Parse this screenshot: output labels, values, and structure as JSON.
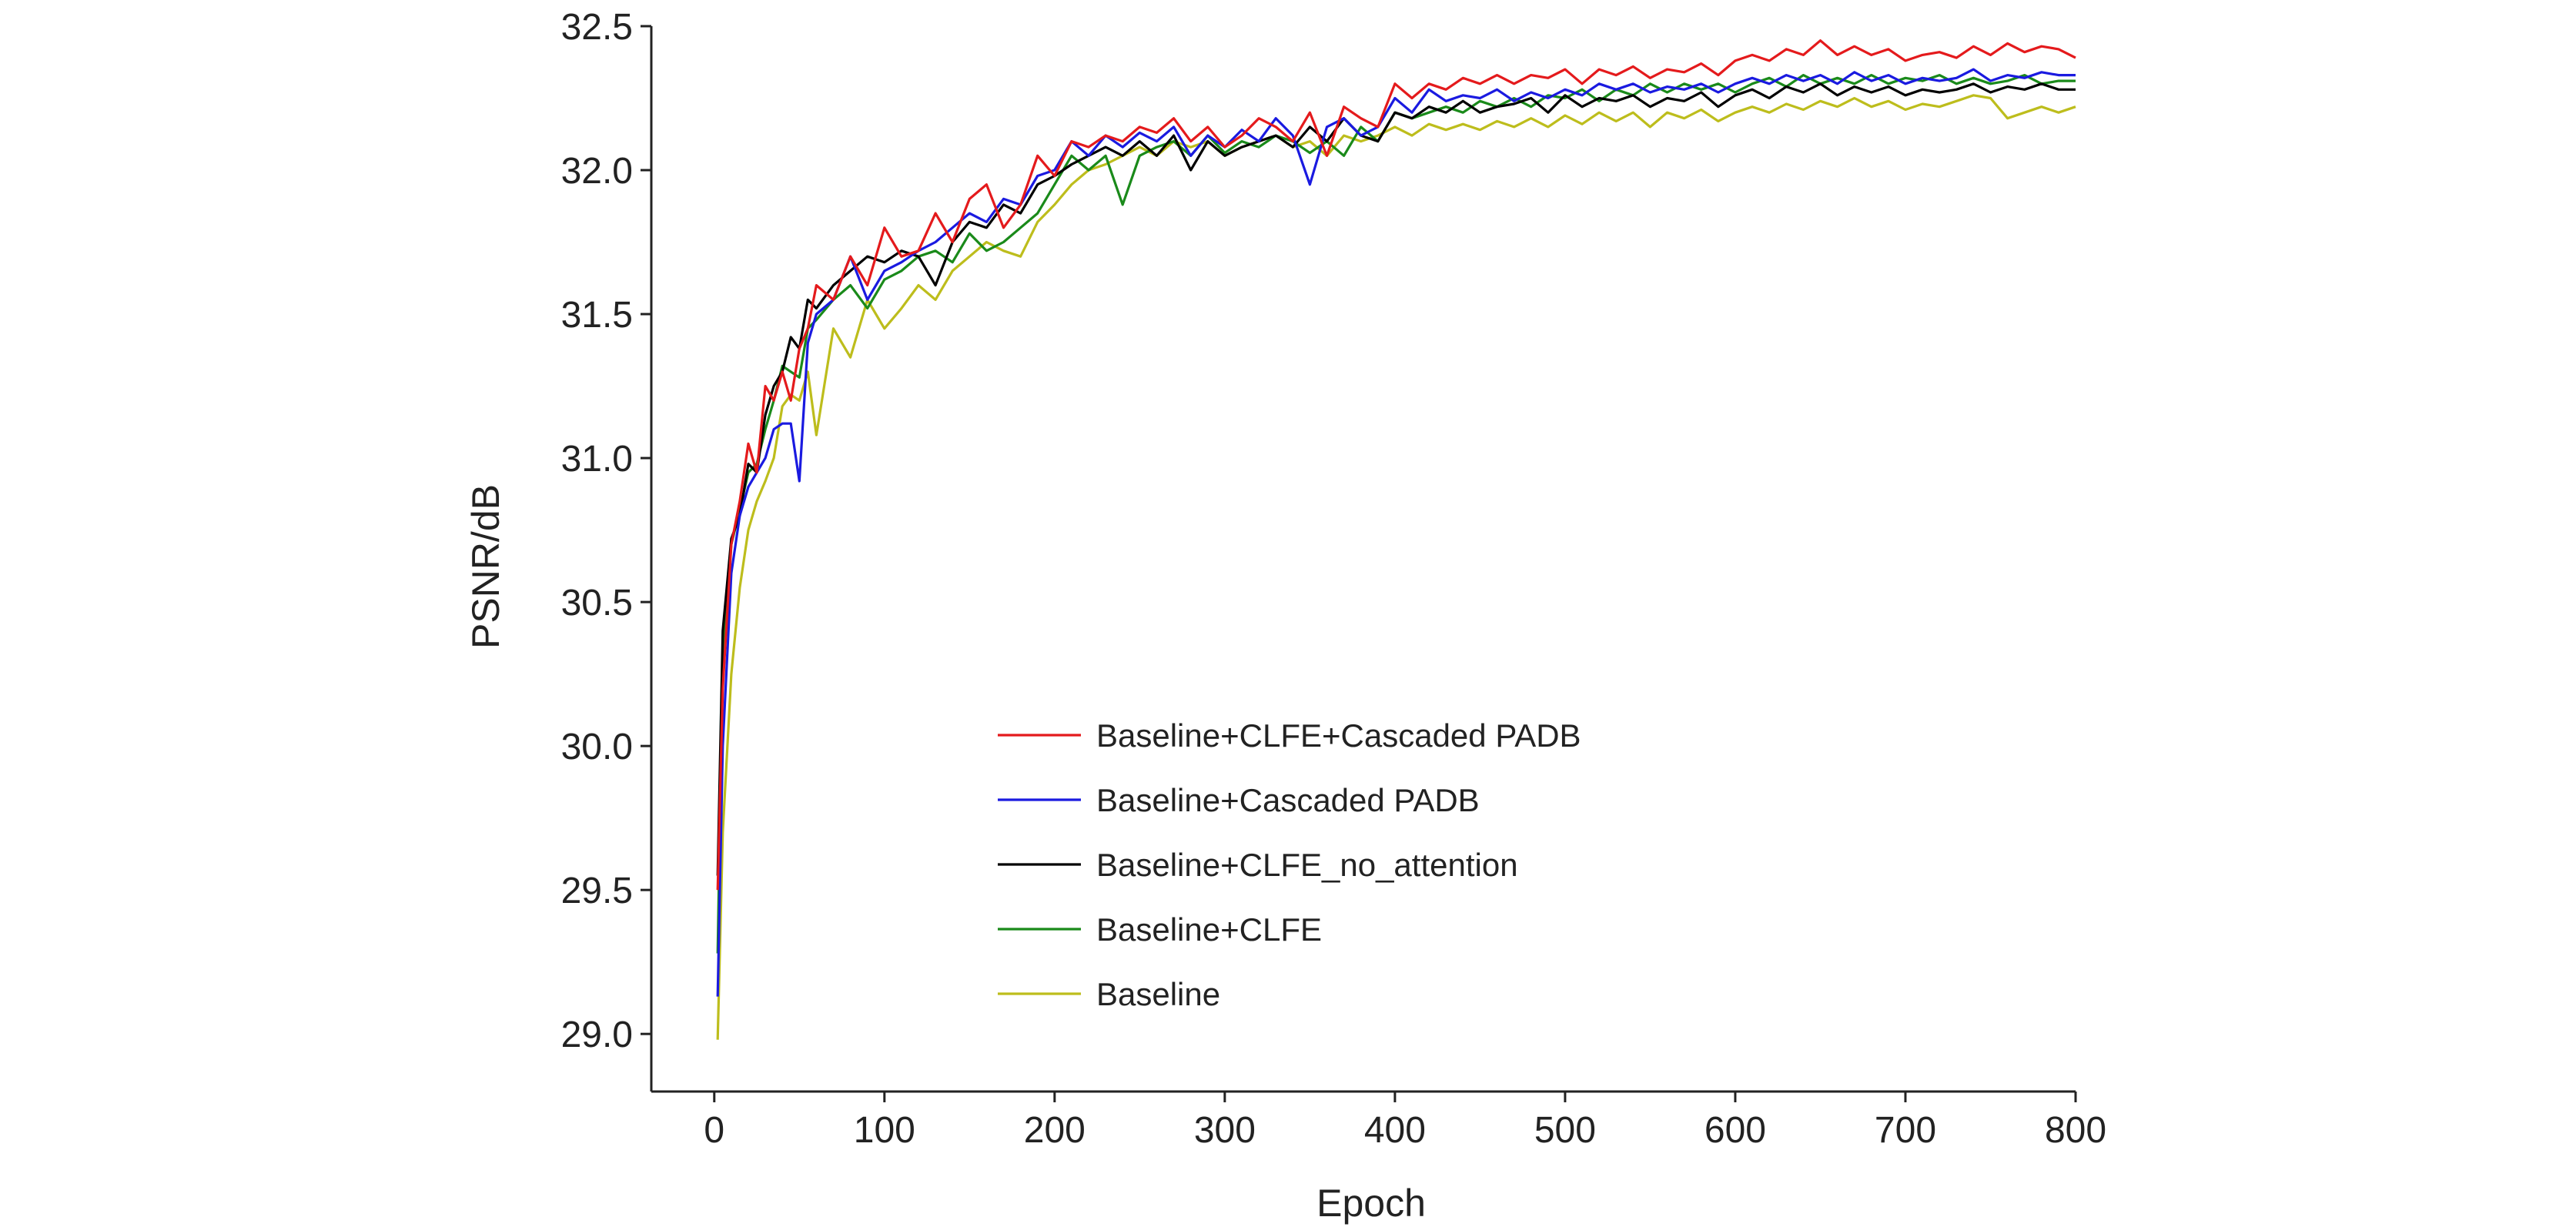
{
  "chart_data": {
    "type": "line",
    "title": "",
    "xlabel": "Epoch",
    "ylabel": "PSNR/dB",
    "xlim": [
      -37,
      800
    ],
    "ylim": [
      28.8,
      32.5
    ],
    "x_ticks": [
      0,
      100,
      200,
      300,
      400,
      500,
      600,
      700,
      800
    ],
    "x_tick_labels": [
      "0",
      "100",
      "200",
      "300",
      "400",
      "500",
      "600",
      "700",
      "800"
    ],
    "y_ticks": [
      29.0,
      29.5,
      30.0,
      30.5,
      31.0,
      31.5,
      32.0,
      32.5
    ],
    "y_tick_labels": [
      "29.0",
      "29.5",
      "30.0",
      "30.5",
      "31.0",
      "31.5",
      "32.0",
      "32.5"
    ],
    "grid": false,
    "legend_position": "center",
    "series": [
      {
        "name": "Baseline+CLFE+Cascaded PADB",
        "color": "#e41a1c",
        "x": [
          2,
          5,
          10,
          15,
          20,
          25,
          30,
          35,
          40,
          45,
          50,
          55,
          60,
          70,
          80,
          90,
          100,
          110,
          120,
          130,
          140,
          150,
          160,
          170,
          180,
          190,
          200,
          210,
          220,
          230,
          240,
          250,
          260,
          270,
          280,
          290,
          300,
          310,
          320,
          330,
          340,
          350,
          360,
          370,
          380,
          390,
          400,
          410,
          420,
          430,
          440,
          450,
          460,
          470,
          480,
          490,
          500,
          510,
          520,
          530,
          540,
          550,
          560,
          570,
          580,
          590,
          600,
          610,
          620,
          630,
          640,
          650,
          660,
          670,
          680,
          690,
          700,
          710,
          720,
          730,
          740,
          750,
          760,
          770,
          780,
          790,
          800
        ],
        "y": [
          29.5,
          30.2,
          30.7,
          30.85,
          31.05,
          30.95,
          31.25,
          31.2,
          31.3,
          31.2,
          31.38,
          31.45,
          31.6,
          31.55,
          31.7,
          31.6,
          31.8,
          31.7,
          31.72,
          31.85,
          31.75,
          31.9,
          31.95,
          31.8,
          31.88,
          32.05,
          31.98,
          32.1,
          32.08,
          32.12,
          32.1,
          32.15,
          32.13,
          32.18,
          32.1,
          32.15,
          32.08,
          32.12,
          32.18,
          32.15,
          32.1,
          32.2,
          32.05,
          32.22,
          32.18,
          32.15,
          32.3,
          32.25,
          32.3,
          32.28,
          32.32,
          32.3,
          32.33,
          32.3,
          32.33,
          32.32,
          32.35,
          32.3,
          32.35,
          32.33,
          32.36,
          32.32,
          32.35,
          32.34,
          32.37,
          32.33,
          32.38,
          32.4,
          32.38,
          32.42,
          32.4,
          32.45,
          32.4,
          32.43,
          32.4,
          32.42,
          32.38,
          32.4,
          32.41,
          32.39,
          32.43,
          32.4,
          32.44,
          32.41,
          32.43,
          32.42,
          32.39
        ]
      },
      {
        "name": "Baseline+Cascaded PADB",
        "color": "#1a1ae0",
        "x": [
          2,
          5,
          10,
          15,
          20,
          25,
          30,
          35,
          40,
          45,
          50,
          55,
          60,
          70,
          80,
          90,
          100,
          110,
          120,
          130,
          140,
          150,
          160,
          170,
          180,
          190,
          200,
          210,
          220,
          230,
          240,
          250,
          260,
          270,
          280,
          290,
          300,
          310,
          320,
          330,
          340,
          350,
          360,
          370,
          380,
          390,
          400,
          410,
          420,
          430,
          440,
          450,
          460,
          470,
          480,
          490,
          500,
          510,
          520,
          530,
          540,
          550,
          560,
          570,
          580,
          590,
          600,
          610,
          620,
          630,
          640,
          650,
          660,
          670,
          680,
          690,
          700,
          710,
          720,
          730,
          740,
          750,
          760,
          770,
          780,
          790,
          800
        ],
        "y": [
          29.13,
          30.0,
          30.6,
          30.8,
          30.9,
          30.95,
          31.0,
          31.1,
          31.12,
          31.12,
          30.92,
          31.4,
          31.5,
          31.55,
          31.7,
          31.55,
          31.65,
          31.68,
          31.72,
          31.75,
          31.8,
          31.85,
          31.82,
          31.9,
          31.88,
          31.98,
          32.0,
          32.1,
          32.05,
          32.12,
          32.08,
          32.13,
          32.1,
          32.15,
          32.05,
          32.12,
          32.08,
          32.14,
          32.1,
          32.18,
          32.12,
          31.95,
          32.15,
          32.18,
          32.12,
          32.15,
          32.25,
          32.2,
          32.28,
          32.24,
          32.26,
          32.25,
          32.28,
          32.24,
          32.27,
          32.25,
          32.28,
          32.26,
          32.3,
          32.28,
          32.3,
          32.27,
          32.29,
          32.28,
          32.3,
          32.27,
          32.3,
          32.32,
          32.3,
          32.33,
          32.31,
          32.33,
          32.3,
          32.34,
          32.31,
          32.33,
          32.3,
          32.32,
          32.31,
          32.32,
          32.35,
          32.31,
          32.33,
          32.32,
          32.34,
          32.33,
          32.33
        ]
      },
      {
        "name": "Baseline+CLFE_no_attention",
        "color": "#000000",
        "x": [
          2,
          5,
          10,
          15,
          20,
          25,
          30,
          35,
          40,
          45,
          50,
          55,
          60,
          70,
          80,
          90,
          100,
          110,
          120,
          130,
          140,
          150,
          160,
          170,
          180,
          190,
          200,
          210,
          220,
          230,
          240,
          250,
          260,
          270,
          280,
          290,
          300,
          310,
          320,
          330,
          340,
          350,
          360,
          370,
          380,
          390,
          400,
          410,
          420,
          430,
          440,
          450,
          460,
          470,
          480,
          490,
          500,
          510,
          520,
          530,
          540,
          550,
          560,
          570,
          580,
          590,
          600,
          610,
          620,
          630,
          640,
          650,
          660,
          670,
          680,
          690,
          700,
          710,
          720,
          730,
          740,
          750,
          760,
          770,
          780,
          790,
          800
        ],
        "y": [
          29.55,
          30.4,
          30.72,
          30.8,
          30.98,
          30.95,
          31.15,
          31.25,
          31.3,
          31.42,
          31.38,
          31.55,
          31.52,
          31.6,
          31.65,
          31.7,
          31.68,
          31.72,
          31.7,
          31.6,
          31.75,
          31.82,
          31.8,
          31.88,
          31.85,
          31.95,
          31.98,
          32.02,
          32.05,
          32.08,
          32.05,
          32.1,
          32.05,
          32.12,
          32.0,
          32.1,
          32.05,
          32.08,
          32.1,
          32.12,
          32.08,
          32.15,
          32.1,
          32.18,
          32.12,
          32.1,
          32.2,
          32.18,
          32.22,
          32.2,
          32.24,
          32.2,
          32.22,
          32.23,
          32.25,
          32.2,
          32.26,
          32.22,
          32.25,
          32.24,
          32.26,
          32.22,
          32.25,
          32.24,
          32.27,
          32.22,
          32.26,
          32.28,
          32.25,
          32.29,
          32.27,
          32.3,
          32.26,
          32.29,
          32.27,
          32.29,
          32.26,
          32.28,
          32.27,
          32.28,
          32.3,
          32.27,
          32.29,
          32.28,
          32.3,
          32.28,
          32.28
        ]
      },
      {
        "name": "Baseline+CLFE",
        "color": "#1a8a1a",
        "x": [
          2,
          5,
          10,
          15,
          20,
          25,
          30,
          35,
          40,
          45,
          50,
          55,
          60,
          70,
          80,
          90,
          100,
          110,
          120,
          130,
          140,
          150,
          160,
          170,
          180,
          190,
          200,
          210,
          220,
          230,
          240,
          250,
          260,
          270,
          280,
          290,
          300,
          310,
          320,
          330,
          340,
          350,
          360,
          370,
          380,
          390,
          400,
          410,
          420,
          430,
          440,
          450,
          460,
          470,
          480,
          490,
          500,
          510,
          520,
          530,
          540,
          550,
          560,
          570,
          580,
          590,
          600,
          610,
          620,
          630,
          640,
          650,
          660,
          670,
          680,
          690,
          700,
          710,
          720,
          730,
          740,
          750,
          760,
          770,
          780,
          790,
          800
        ],
        "y": [
          29.28,
          30.3,
          30.7,
          30.82,
          30.95,
          30.98,
          31.1,
          31.2,
          31.32,
          31.3,
          31.28,
          31.45,
          31.48,
          31.55,
          31.6,
          31.52,
          31.62,
          31.65,
          31.7,
          31.72,
          31.68,
          31.78,
          31.72,
          31.75,
          31.8,
          31.85,
          31.95,
          32.05,
          32.0,
          32.05,
          31.88,
          32.05,
          32.08,
          32.1,
          32.05,
          32.12,
          32.06,
          32.1,
          32.08,
          32.12,
          32.1,
          32.06,
          32.1,
          32.05,
          32.15,
          32.1,
          32.2,
          32.18,
          32.2,
          32.22,
          32.2,
          32.24,
          32.22,
          32.25,
          32.22,
          32.26,
          32.25,
          32.28,
          32.24,
          32.28,
          32.26,
          32.3,
          32.27,
          32.3,
          32.28,
          32.3,
          32.27,
          32.3,
          32.32,
          32.29,
          32.33,
          32.3,
          32.32,
          32.3,
          32.33,
          32.3,
          32.32,
          32.31,
          32.33,
          32.3,
          32.32,
          32.3,
          32.31,
          32.33,
          32.3,
          32.31,
          32.31
        ]
      },
      {
        "name": "Baseline",
        "color": "#bdbd1c",
        "x": [
          2,
          5,
          10,
          15,
          20,
          25,
          30,
          35,
          40,
          45,
          50,
          55,
          60,
          70,
          80,
          90,
          100,
          110,
          120,
          130,
          140,
          150,
          160,
          170,
          180,
          190,
          200,
          210,
          220,
          230,
          240,
          250,
          260,
          270,
          280,
          290,
          300,
          310,
          320,
          330,
          340,
          350,
          360,
          370,
          380,
          390,
          400,
          410,
          420,
          430,
          440,
          450,
          460,
          470,
          480,
          490,
          500,
          510,
          520,
          530,
          540,
          550,
          560,
          570,
          580,
          590,
          600,
          610,
          620,
          630,
          640,
          650,
          660,
          670,
          680,
          690,
          700,
          710,
          720,
          730,
          740,
          750,
          760,
          770,
          780,
          790,
          800
        ],
        "y": [
          28.98,
          29.7,
          30.25,
          30.55,
          30.75,
          30.85,
          30.92,
          31.0,
          31.18,
          31.22,
          31.2,
          31.3,
          31.08,
          31.45,
          31.35,
          31.55,
          31.45,
          31.52,
          31.6,
          31.55,
          31.65,
          31.7,
          31.75,
          31.72,
          31.7,
          31.82,
          31.88,
          31.95,
          32.0,
          32.02,
          32.05,
          32.08,
          32.05,
          32.1,
          32.08,
          32.1,
          32.05,
          32.08,
          32.1,
          32.12,
          32.08,
          32.1,
          32.05,
          32.12,
          32.1,
          32.12,
          32.15,
          32.12,
          32.16,
          32.14,
          32.16,
          32.14,
          32.17,
          32.15,
          32.18,
          32.15,
          32.19,
          32.16,
          32.2,
          32.17,
          32.2,
          32.15,
          32.2,
          32.18,
          32.21,
          32.17,
          32.2,
          32.22,
          32.2,
          32.23,
          32.21,
          32.24,
          32.22,
          32.25,
          32.22,
          32.24,
          32.21,
          32.23,
          32.22,
          32.24,
          32.26,
          32.25,
          32.18,
          32.2,
          32.22,
          32.2,
          32.22
        ]
      }
    ]
  }
}
